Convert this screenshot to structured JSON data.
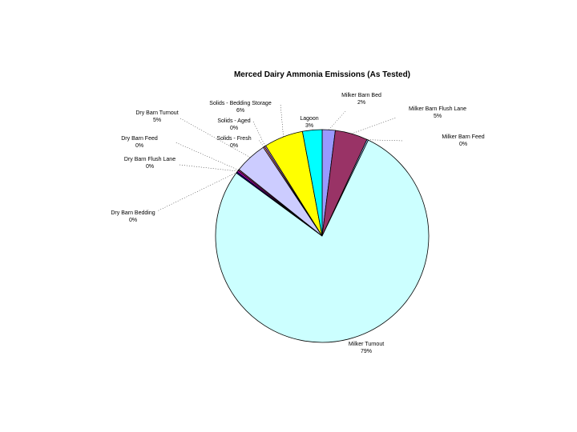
{
  "chart_data": {
    "type": "pie",
    "title": "Merced Dairy Ammonia Emissions (As Tested)",
    "categories": [
      "Milker Barn Bed",
      "Milker Barn Flush Lane",
      "Milker Barn Feed",
      "Milker Turnout",
      "Dry Barn Bedding",
      "Dry Barn Flush Lane",
      "Dry Barn Feed",
      "Dry Barn Turnout",
      "Solids - Fresh",
      "Solids - Aged",
      "Solids - Bedding Storage",
      "Lagoon"
    ],
    "values": [
      2,
      5,
      0,
      79,
      0,
      0,
      0,
      5,
      0,
      0,
      6,
      3
    ],
    "labels": [
      "2%",
      "5%",
      "0%",
      "79%",
      "0%",
      "0%",
      "0%",
      "5%",
      "0%",
      "0%",
      "6%",
      "3%"
    ],
    "colors": [
      "#9999ff",
      "#993366",
      "#99ccff",
      "#ccffff",
      "#000080",
      "#ff00ff",
      "#993366",
      "#ccccff",
      "#ff9999",
      "#cc99ff",
      "#ffff00",
      "#00ffff"
    ],
    "legend": "none"
  }
}
